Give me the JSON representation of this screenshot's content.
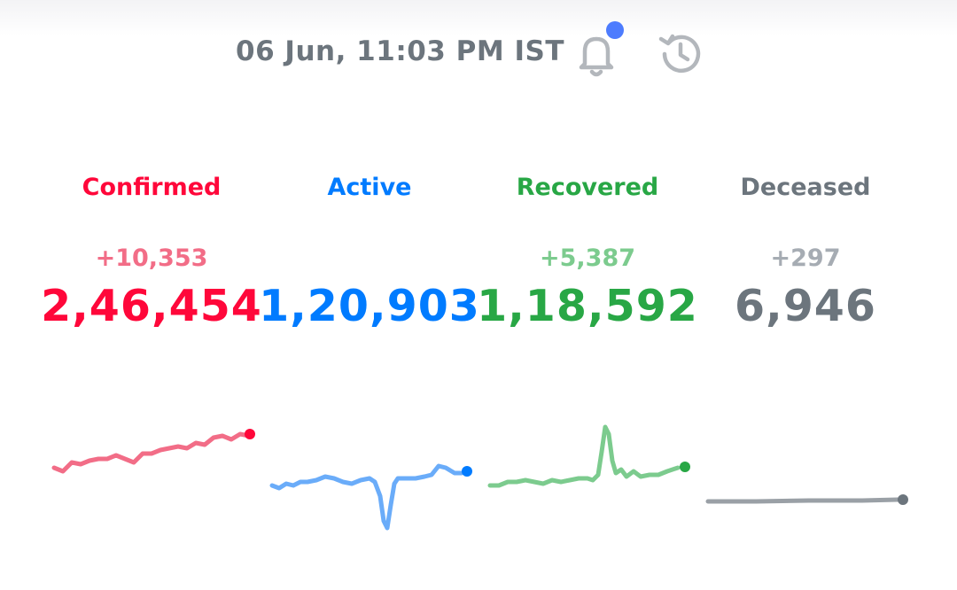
{
  "header": {
    "timestamp": "06 Jun, 11:03 PM IST",
    "notification_dot_color": "#4d7cfe",
    "bell_icon": "bell-icon",
    "history_icon": "history-icon"
  },
  "stats": [
    {
      "label": "Confirmed",
      "delta": "+10,353",
      "total": "2,46,454",
      "color": "#ff073a",
      "delta_color": "#f26d87",
      "line_color": "#f26d87"
    },
    {
      "label": "Active",
      "delta": "",
      "total": "1,20,903",
      "color": "#007bff",
      "delta_color": "#6aacf9",
      "line_color": "#6aacf9"
    },
    {
      "label": "Recovered",
      "delta": "+5,387",
      "total": "1,18,592",
      "color": "#28a745",
      "delta_color": "#7ccb8e",
      "line_color": "#7ccb8e"
    },
    {
      "label": "Deceased",
      "delta": "+297",
      "total": "6,946",
      "color": "#6c757d",
      "delta_color": "#a6acb3",
      "line_color": "#9aa0a6"
    }
  ]
}
